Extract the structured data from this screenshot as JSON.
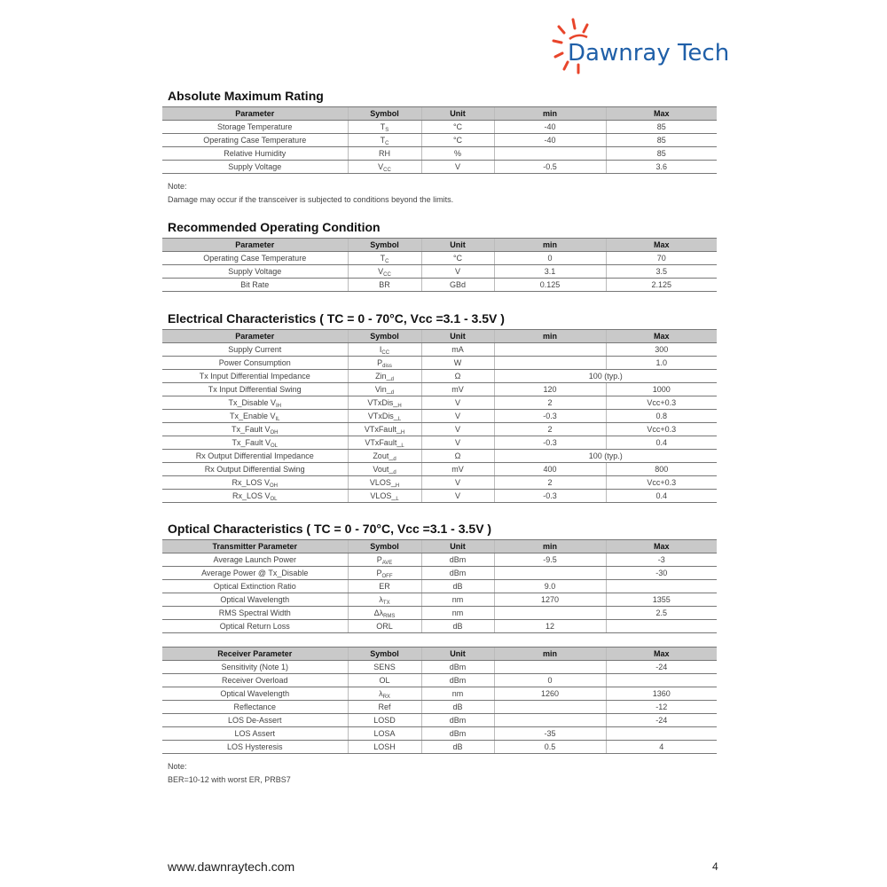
{
  "logo": {
    "text": "Dawnray Tech"
  },
  "sections": [
    {
      "title": "Absolute Maximum Rating",
      "tables": [
        {
          "header": [
            "Parameter",
            "Symbol",
            "Unit",
            "min",
            "Max"
          ],
          "rows": [
            [
              "Storage Temperature",
              {
                "text": "T",
                "sub": "S"
              },
              "°C",
              "-40",
              "85"
            ],
            [
              "Operating Case Temperature",
              {
                "text": "T",
                "sub": "C"
              },
              "°C",
              "-40",
              "85"
            ],
            [
              "Relative Humidity",
              "RH",
              "%",
              null,
              "85"
            ],
            [
              "Supply Voltage",
              {
                "text": "V",
                "sub": "CC"
              },
              "V",
              "-0.5",
              "3.6"
            ]
          ]
        }
      ],
      "note": {
        "label": "Note:",
        "text": "Damage may occur if the transceiver is subjected to conditions beyond the limits."
      }
    },
    {
      "title": "Recommended Operating Condition",
      "tables": [
        {
          "header": [
            "Parameter",
            "Symbol",
            "Unit",
            "min",
            "Max"
          ],
          "rows": [
            [
              "Operating Case Temperature",
              {
                "text": "T",
                "sub": "C"
              },
              "°C",
              "0",
              "70"
            ],
            [
              "Supply Voltage",
              {
                "text": "V",
                "sub": "CC"
              },
              "V",
              "3.1",
              "3.5"
            ],
            [
              "Bit Rate",
              "BR",
              "GBd",
              "0.125",
              "2.125"
            ]
          ]
        }
      ]
    },
    {
      "title": "Electrical Characteristics ( TC = 0 - 70°C, Vcc =3.1 - 3.5V )",
      "tables": [
        {
          "header": [
            "Parameter",
            "Symbol",
            "Unit",
            "min",
            "Max"
          ],
          "rows": [
            [
              "Supply Current",
              {
                "text": "I",
                "sub": "CC"
              },
              "mA",
              null,
              "300"
            ],
            [
              "Power Consumption",
              {
                "text": "P",
                "sub": "diss"
              },
              "W",
              null,
              "1.0"
            ],
            [
              "Tx Input Differential Impedance",
              {
                "text": "Zin_",
                "sub": "d"
              },
              "Ω",
              "100 (typ.)"
            ],
            [
              "Tx Input Differential Swing",
              {
                "text": "Vin_",
                "sub": "d"
              },
              "mV",
              "120",
              "1000"
            ],
            [
              {
                "text": "Tx_Disable V",
                "sub": "IH"
              },
              {
                "text": "VTxDis_",
                "sub": "H"
              },
              "V",
              "2",
              "Vcc+0.3"
            ],
            [
              {
                "text": "Tx_Enable V",
                "sub": "IL"
              },
              {
                "text": "VTxDis_",
                "sub": "L"
              },
              "V",
              "-0.3",
              "0.8"
            ],
            [
              {
                "text": "Tx_Fault V",
                "sub": "OH"
              },
              {
                "text": "VTxFault_",
                "sub": "H"
              },
              "V",
              "2",
              "Vcc+0.3"
            ],
            [
              {
                "text": "Tx_Fault V",
                "sub": "OL"
              },
              {
                "text": "VTxFault_",
                "sub": "L"
              },
              "V",
              "-0.3",
              "0.4"
            ],
            [
              "Rx Output Differential Impedance",
              {
                "text": "Zout_",
                "sub": "d"
              },
              "Ω",
              "100 (typ.)"
            ],
            [
              "Rx Output Differential Swing",
              {
                "text": "Vout_",
                "sub": "d"
              },
              "mV",
              "400",
              "800"
            ],
            [
              {
                "text": "Rx_LOS V",
                "sub": "OH"
              },
              {
                "text": "VLOS_",
                "sub": "H"
              },
              "V",
              "2",
              "Vcc+0.3"
            ],
            [
              {
                "text": "Rx_LOS V",
                "sub": "OL"
              },
              {
                "text": "VLOS_",
                "sub": "L"
              },
              "V",
              "-0.3",
              "0.4"
            ]
          ]
        }
      ]
    },
    {
      "title": "Optical Characteristics ( TC = 0 - 70°C, Vcc =3.1 - 3.5V )",
      "tables": [
        {
          "header": [
            "Transmitter Parameter",
            "Symbol",
            "Unit",
            "min",
            "Max"
          ],
          "rows": [
            [
              "Average Launch Power",
              {
                "text": "P",
                "sub": "AVE"
              },
              "dBm",
              "-9.5",
              "-3"
            ],
            [
              "Average Power @ Tx_Disable",
              {
                "text": "P",
                "sub": "OFF"
              },
              "dBm",
              null,
              "-30"
            ],
            [
              "Optical Extinction Ratio",
              "ER",
              "dB",
              "9.0",
              null
            ],
            [
              "Optical Wavelength",
              {
                "text": "λ",
                "sub": "TX"
              },
              "nm",
              "1270",
              "1355"
            ],
            [
              "RMS Spectral Width",
              {
                "text": "Δλ",
                "sub": "RMS"
              },
              "nm",
              null,
              "2.5"
            ],
            [
              "Optical Return Loss",
              "ORL",
              "dB",
              "12",
              null
            ]
          ]
        },
        {
          "header": [
            "Receiver Parameter",
            "Symbol",
            "Unit",
            "min",
            "Max"
          ],
          "rows": [
            [
              "Sensitivity (Note 1)",
              "SENS",
              "dBm",
              null,
              "-24"
            ],
            [
              "Receiver Overload",
              "OL",
              "dBm",
              "0",
              null
            ],
            [
              "Optical Wavelength",
              {
                "text": "λ",
                "sub": "RX"
              },
              "nm",
              "1260",
              "1360"
            ],
            [
              "Reflectance",
              "Ref",
              "dB",
              null,
              "-12"
            ],
            [
              "LOS De-Assert",
              "LOSD",
              "dBm",
              null,
              "-24"
            ],
            [
              "LOS Assert",
              "LOSA",
              "dBm",
              "-35",
              null
            ],
            [
              "LOS Hysteresis",
              "LOSH",
              "dB",
              "0.5",
              "4"
            ]
          ]
        }
      ],
      "note": {
        "label": "Note:",
        "text": "BER=10-12 with worst ER, PRBS7"
      }
    }
  ],
  "footer": {
    "url": "www.dawnraytech.com",
    "page": "4"
  }
}
